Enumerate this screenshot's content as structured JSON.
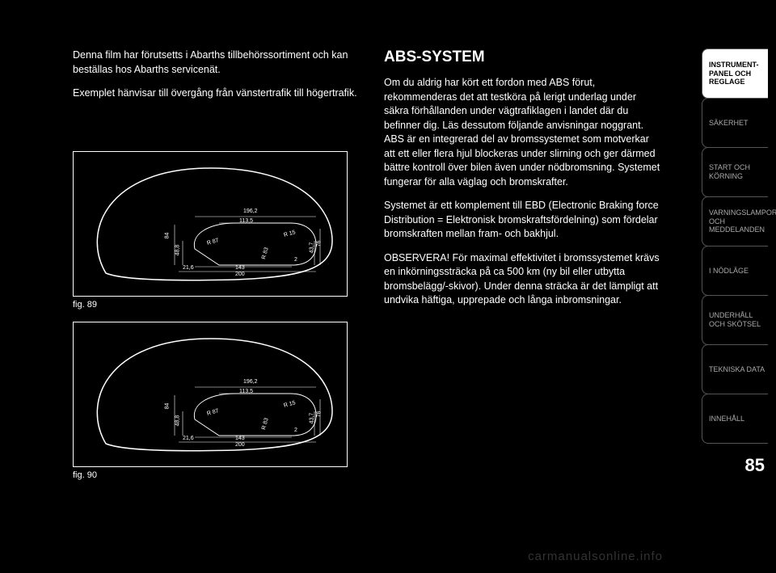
{
  "left_column": {
    "para1": "Denna film har förutsetts i Abarths tillbehörssortiment och kan beställas hos Abarths servicenät.",
    "para2": "Exemplet hänvisar till övergång från vänstertrafik till högertrafik.",
    "fig89_caption": "fig. 89",
    "fig90_caption": "fig. 90"
  },
  "right_column": {
    "heading": "ABS-SYSTEM",
    "para1": "Om du aldrig har kört ett fordon med ABS förut, rekommenderas det att testköra på lerigt underlag under säkra förhållanden under vägtrafiklagen i landet där du befinner dig. Läs dessutom följande anvisningar noggrant. ABS är en integrerad del av bromssystemet som motverkar att ett eller flera hjul blockeras under slirning och ger därmed bättre kontroll över bilen även under nödbromsning. Systemet fungerar för alla väglag och bromskrafter.",
    "para2": "Systemet är ett komplement till EBD (Electronic Braking force Distribution = Elektronisk bromskraftsfördelning) som fördelar bromskraften mellan fram- och bakhjul.",
    "para3": "OBSERVERA! För maximal effektivitet i bromssystemet krävs en inkörningssträcka på ca 500 km (ny bil eller utbytta bromsbelägg/-skivor). Under denna sträcka är det lämpligt att undvika häftiga, upprepade och långa inbromsningar."
  },
  "sidebar": {
    "tabs": [
      {
        "label": "INSTRUMENT-\nPANEL OCH\nREGLAGE",
        "active": true
      },
      {
        "label": "SÄKERHET",
        "active": false
      },
      {
        "label": "START OCH\nKÖRNING",
        "active": false
      },
      {
        "label": "VARNINGSLAMPOR\nOCH\nMEDDELANDEN",
        "active": false
      },
      {
        "label": "I NÖDLÄGE",
        "active": false
      },
      {
        "label": "UNDERHÅLL\nOCH SKÖTSEL",
        "active": false
      },
      {
        "label": "TEKNISKA DATA",
        "active": false
      },
      {
        "label": "INNEHÅLL",
        "active": false
      }
    ]
  },
  "page_number": "85",
  "watermark": "carmanualsonline.info",
  "diagram": {
    "outline_color": "#ffffff",
    "background_color": "#000000",
    "labels": {
      "top_outer": "196,2",
      "top_inner": "113,5",
      "left_upper": "84",
      "left_lower": "48,8",
      "bottom_left": "21,6",
      "bottom_mid": "143",
      "bottom_outer": "200",
      "right_small": "2",
      "right_mid": "43,7",
      "right_outer": "76",
      "radius_left": "R 87",
      "radius_right": "R 15",
      "radius_bottom": "R 83"
    }
  }
}
